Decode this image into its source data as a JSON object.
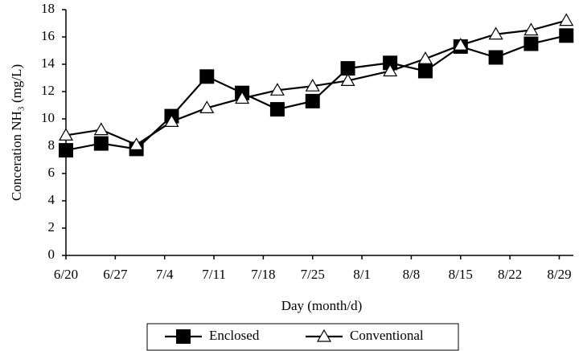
{
  "chart_data": {
    "type": "line",
    "ylabel": "Conceration NH₃ (mg/L)",
    "xlabel": "Day (month/d)",
    "x": [
      0,
      5,
      10,
      15,
      20,
      25,
      30,
      35,
      40,
      46,
      51,
      56,
      61,
      66,
      71
    ],
    "xlim": [
      0,
      72
    ],
    "xticks": [
      {
        "value": 0,
        "label": "6/20"
      },
      {
        "value": 7,
        "label": "6/27"
      },
      {
        "value": 14,
        "label": "7/4"
      },
      {
        "value": 21,
        "label": "7/11"
      },
      {
        "value": 28,
        "label": "7/18"
      },
      {
        "value": 35,
        "label": "7/25"
      },
      {
        "value": 42,
        "label": "8/1"
      },
      {
        "value": 49,
        "label": "8/8"
      },
      {
        "value": 56,
        "label": "8/15"
      },
      {
        "value": 63,
        "label": "8/22"
      },
      {
        "value": 70,
        "label": "8/29"
      }
    ],
    "ylim": [
      0,
      18
    ],
    "yticks": [
      0,
      2,
      4,
      6,
      8,
      10,
      12,
      14,
      16,
      18
    ],
    "series": [
      {
        "name": "Enclosed",
        "color": "#000000",
        "marker": "square",
        "values": [
          7.7,
          8.2,
          7.8,
          10.2,
          13.1,
          11.9,
          10.7,
          11.3,
          13.7,
          14.1,
          13.5,
          15.3,
          14.5,
          15.5,
          16.1
        ]
      },
      {
        "name": "Conventional",
        "color": "#000000",
        "marker": "triangle",
        "values": [
          8.8,
          9.2,
          8.1,
          9.8,
          10.8,
          11.5,
          12.1,
          12.4,
          12.8,
          13.5,
          14.4,
          15.4,
          16.2,
          16.5,
          17.2
        ]
      }
    ]
  }
}
